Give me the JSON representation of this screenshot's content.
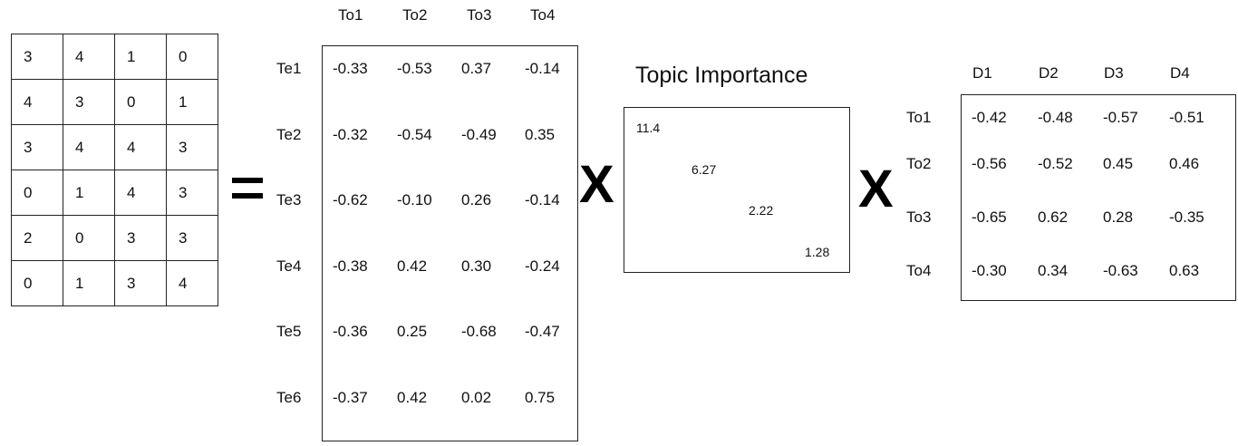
{
  "term_document_matrix": [
    [
      "3",
      "4",
      "1",
      "0"
    ],
    [
      "4",
      "3",
      "0",
      "1"
    ],
    [
      "3",
      "4",
      "4",
      "3"
    ],
    [
      "0",
      "1",
      "4",
      "3"
    ],
    [
      "2",
      "0",
      "3",
      "3"
    ],
    [
      "0",
      "1",
      "3",
      "4"
    ]
  ],
  "equals_sign": "=",
  "term_topic": {
    "col_headers": [
      "To1",
      "To2",
      "To3",
      "To4"
    ],
    "row_headers": [
      "Te1",
      "Te2",
      "Te3",
      "Te4",
      "Te5",
      "Te6"
    ],
    "rows": [
      [
        "-0.33",
        "-0.53",
        "0.37",
        "-0.14"
      ],
      [
        "-0.32",
        "-0.54",
        "-0.49",
        "0.35"
      ],
      [
        "-0.62",
        "-0.10",
        "0.26",
        "-0.14"
      ],
      [
        "-0.38",
        "0.42",
        "0.30",
        "-0.24"
      ],
      [
        "-0.36",
        "0.25",
        "-0.68",
        "-0.47"
      ],
      [
        "-0.37",
        "0.42",
        "0.02",
        "0.75"
      ]
    ]
  },
  "multiply_sign": "X",
  "topic_importance": {
    "title": "Topic Importance",
    "values": [
      "11.4",
      "6.27",
      "2.22",
      "1.28"
    ]
  },
  "topic_document": {
    "col_headers": [
      "D1",
      "D2",
      "D3",
      "D4"
    ],
    "row_headers": [
      "To1",
      "To2",
      "To3",
      "To4"
    ],
    "rows": [
      [
        "-0.42",
        "-0.48",
        "-0.57",
        "-0.51"
      ],
      [
        "-0.56",
        "-0.52",
        "0.45",
        "0.46"
      ],
      [
        "-0.65",
        "0.62",
        "0.28",
        "-0.35"
      ],
      [
        "-0.30",
        "0.34",
        "-0.63",
        "0.63"
      ]
    ]
  }
}
